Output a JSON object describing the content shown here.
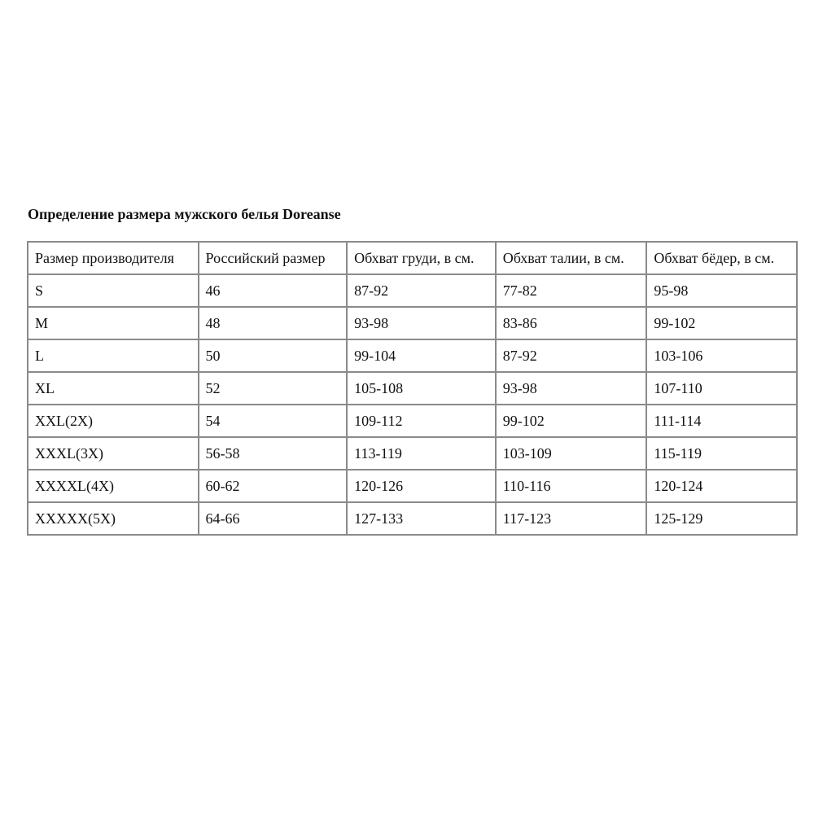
{
  "title": "Определение размера мужского белья Doreanse",
  "table": {
    "headers": [
      "Размер производителя",
      "Российский размер",
      "Обхват груди, в см.",
      "Обхват талии, в см.",
      "Обхват бёдер, в см."
    ],
    "rows": [
      [
        "S",
        "46",
        "87-92",
        "77-82",
        "95-98"
      ],
      [
        "M",
        "48",
        "93-98",
        "83-86",
        "99-102"
      ],
      [
        "L",
        "50",
        "99-104",
        "87-92",
        "103-106"
      ],
      [
        "XL",
        "52",
        "105-108",
        "93-98",
        "107-110"
      ],
      [
        "XXL(2X)",
        "54",
        "109-112",
        "99-102",
        "111-114"
      ],
      [
        "XXXL(3X)",
        "56-58",
        "113-119",
        "103-109",
        "115-119"
      ],
      [
        "XXXXL(4X)",
        "60-62",
        "120-126",
        "110-116",
        "120-124"
      ],
      [
        "XXXXX(5X)",
        "64-66",
        "127-133",
        "117-123",
        "125-129"
      ]
    ]
  },
  "colors": {
    "border": "#8a8a8a",
    "text": "#111111"
  }
}
